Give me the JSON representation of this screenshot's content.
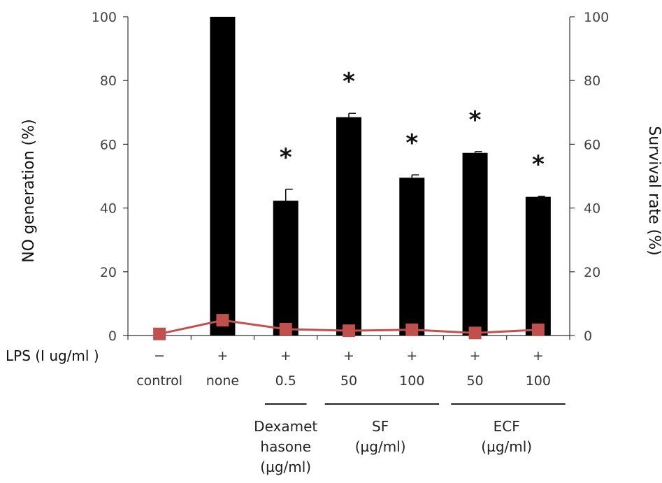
{
  "chart_data": {
    "type": "bar",
    "ylabel": "NO generation (%)",
    "y2label": "Survival rate (%)",
    "ylim": [
      0,
      100
    ],
    "y2lim": [
      0,
      100
    ],
    "yticks": [
      0,
      20,
      40,
      60,
      80,
      100
    ],
    "lps_label": "LPS (I ug/ml )",
    "lps_marks": [
      "−",
      "+",
      "+",
      "+",
      "+",
      "+",
      "+"
    ],
    "categories": [
      "control",
      "none",
      "0.5",
      "50",
      "100",
      "50",
      "100"
    ],
    "series": [
      {
        "type": "bar",
        "values": [
          0,
          100,
          42.3,
          68.5,
          49.5,
          57.3,
          43.5
        ],
        "errors": [
          0,
          0,
          3.6,
          1.2,
          0.9,
          0.4,
          0.2
        ],
        "significance": [
          "",
          "",
          "*",
          "*",
          "*",
          "*",
          "*"
        ],
        "color": "#000000"
      },
      {
        "type": "line",
        "axis": "right",
        "values": [
          0.5,
          4.8,
          2.0,
          1.5,
          1.8,
          0.8,
          1.8
        ],
        "color": "#c0504d"
      }
    ],
    "groups": [
      {
        "lines": [
          "Dexamet",
          "hasone",
          "(µg/ml)"
        ],
        "from": 2,
        "to": 2
      },
      {
        "lines": [
          "SF",
          "(µg/ml)"
        ],
        "from": 3,
        "to": 4
      },
      {
        "lines": [
          "ECF",
          "(µg/ml)"
        ],
        "from": 5,
        "to": 6
      }
    ],
    "grid": false,
    "legend": "none"
  }
}
